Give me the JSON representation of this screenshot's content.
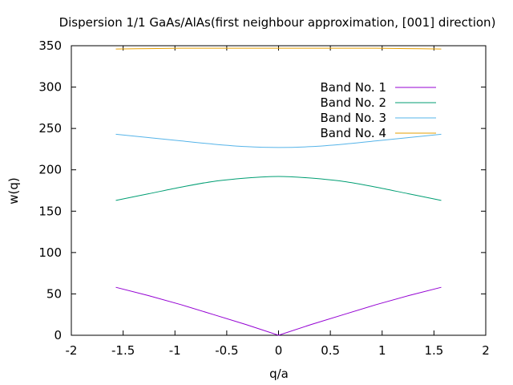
{
  "chart_data": {
    "type": "line",
    "title": "Dispersion 1/1 GaAs/AlAs(first neighbour approximation, [001] direction)",
    "xlabel": "q/a",
    "ylabel": "w(q)",
    "xlim": [
      -2,
      2
    ],
    "ylim": [
      0,
      350
    ],
    "xticks": [
      -2,
      -1.5,
      -1,
      -0.5,
      0,
      0.5,
      1,
      1.5,
      2
    ],
    "xtick_labels": [
      "-2",
      "-1.5",
      "-1",
      "-0.5",
      "0",
      "0.5",
      "1",
      "1.5",
      "2"
    ],
    "yticks": [
      0,
      50,
      100,
      150,
      200,
      250,
      300,
      350
    ],
    "ytick_labels": [
      "0",
      "50",
      "100",
      "150",
      "200",
      "250",
      "300",
      "350"
    ],
    "grid": false,
    "legend_position": "top-right",
    "series": [
      {
        "name": "Band No. 1",
        "color": "#9400d3",
        "x": [
          -1.5708,
          -1.2566,
          -0.9425,
          -0.6283,
          -0.3142,
          0,
          0.3142,
          0.6283,
          0.9425,
          1.2566,
          1.5708
        ],
        "values": [
          58,
          48,
          37,
          25,
          13,
          0,
          13,
          25,
          37,
          48,
          58
        ]
      },
      {
        "name": "Band No. 2",
        "color": "#009e73",
        "x": [
          -1.5708,
          -1.2566,
          -0.9425,
          -0.6283,
          -0.3142,
          0,
          0.3142,
          0.6283,
          0.9425,
          1.2566,
          1.5708
        ],
        "values": [
          163,
          171,
          179,
          186,
          190,
          192,
          190,
          186,
          179,
          171,
          163
        ]
      },
      {
        "name": "Band No. 3",
        "color": "#56b4e9",
        "x": [
          -1.5708,
          -1.2566,
          -0.9425,
          -0.6283,
          -0.3142,
          0,
          0.3142,
          0.6283,
          0.9425,
          1.2566,
          1.5708
        ],
        "values": [
          243,
          239,
          235,
          231,
          228,
          227,
          228,
          231,
          235,
          239,
          243
        ]
      },
      {
        "name": "Band No. 4",
        "color": "#e69f00",
        "x": [
          -1.5708,
          -1.2566,
          -0.9425,
          -0.6283,
          -0.3142,
          0,
          0.3142,
          0.6283,
          0.9425,
          1.2566,
          1.5708
        ],
        "values": [
          346,
          346.5,
          347,
          347,
          347,
          347,
          347,
          347,
          347,
          346.5,
          346
        ]
      }
    ]
  }
}
